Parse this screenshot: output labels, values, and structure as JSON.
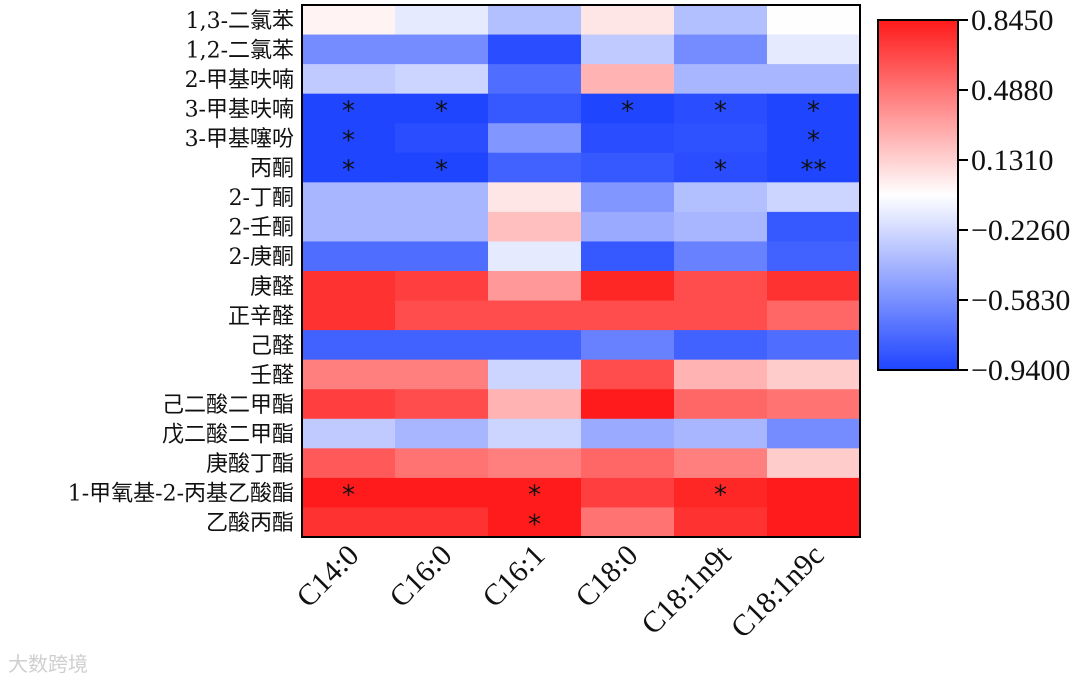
{
  "chart_data": {
    "type": "heatmap",
    "rows": [
      "1,3-二氯苯",
      "1,2-二氯苯",
      "2-甲基呋喃",
      "3-甲基呋喃",
      "3-甲基噻吩",
      "丙酮",
      "2-丁酮",
      "2-壬酮",
      "2-庚酮",
      "庚醛",
      "正辛醛",
      "己醛",
      "壬醛",
      "己二酸二甲酯",
      "戊二酸二甲酯",
      "庚酸丁酯",
      "1-甲氧基-2-丙基乙酸酯",
      "乙酸丙酯"
    ],
    "columns": [
      "C14:0",
      "C16:0",
      "C16:1",
      "C18:0",
      "C18:1n9t",
      "C18:1n9c"
    ],
    "values": [
      [
        0.0,
        -0.15,
        -0.35,
        0.05,
        -0.35,
        -0.05
      ],
      [
        -0.6,
        -0.6,
        -0.9,
        -0.3,
        -0.6,
        -0.15
      ],
      [
        -0.3,
        -0.25,
        -0.75,
        0.25,
        -0.4,
        -0.4
      ],
      [
        -0.94,
        -0.94,
        -0.85,
        -0.94,
        -0.9,
        -0.94
      ],
      [
        -0.94,
        -0.9,
        -0.55,
        -0.9,
        -0.88,
        -0.94
      ],
      [
        -0.94,
        -0.94,
        -0.8,
        -0.85,
        -0.9,
        -0.94
      ],
      [
        -0.4,
        -0.4,
        0.05,
        -0.55,
        -0.35,
        -0.25
      ],
      [
        -0.4,
        -0.4,
        0.2,
        -0.45,
        -0.4,
        -0.85
      ],
      [
        -0.75,
        -0.75,
        -0.15,
        -0.85,
        -0.65,
        -0.8
      ],
      [
        0.75,
        0.7,
        0.35,
        0.8,
        0.65,
        0.75
      ],
      [
        0.75,
        0.65,
        0.65,
        0.65,
        0.65,
        0.55
      ],
      [
        -0.8,
        -0.8,
        -0.8,
        -0.65,
        -0.8,
        -0.75
      ],
      [
        0.45,
        0.45,
        -0.25,
        0.65,
        0.25,
        0.15
      ],
      [
        0.7,
        0.65,
        0.25,
        0.84,
        0.55,
        0.5
      ],
      [
        -0.3,
        -0.4,
        -0.25,
        -0.45,
        -0.4,
        -0.6
      ],
      [
        0.6,
        0.5,
        0.45,
        0.55,
        0.45,
        0.15
      ],
      [
        0.84,
        0.84,
        0.84,
        0.7,
        0.8,
        0.84
      ],
      [
        0.75,
        0.75,
        0.84,
        0.5,
        0.75,
        0.84
      ]
    ],
    "significance": [
      [
        "",
        "",
        "",
        "",
        "",
        ""
      ],
      [
        "",
        "",
        "",
        "",
        "",
        ""
      ],
      [
        "",
        "",
        "",
        "",
        "",
        ""
      ],
      [
        "*",
        "*",
        "",
        "*",
        "*",
        "*"
      ],
      [
        "*",
        "",
        "",
        "",
        "",
        "*"
      ],
      [
        "*",
        "*",
        "",
        "",
        "*",
        "**"
      ],
      [
        "",
        "",
        "",
        "",
        "",
        ""
      ],
      [
        "",
        "",
        "",
        "",
        "",
        ""
      ],
      [
        "",
        "",
        "",
        "",
        "",
        ""
      ],
      [
        "",
        "",
        "",
        "",
        "",
        ""
      ],
      [
        "",
        "",
        "",
        "",
        "",
        ""
      ],
      [
        "",
        "",
        "",
        "",
        "",
        ""
      ],
      [
        "",
        "",
        "",
        "",
        "",
        ""
      ],
      [
        "",
        "",
        "",
        "",
        "",
        ""
      ],
      [
        "",
        "",
        "",
        "",
        "",
        ""
      ],
      [
        "",
        "",
        "",
        "",
        "",
        ""
      ],
      [
        "*",
        "",
        "*",
        "",
        "*",
        ""
      ],
      [
        "",
        "",
        "*",
        "",
        "",
        ""
      ]
    ],
    "scale_min": -0.94,
    "scale_max": 0.845,
    "colorbar_ticks": [
      "0.8450",
      "0.4880",
      "0.1310",
      "−0.2260",
      "−0.5830",
      "−0.9400"
    ],
    "colors": {
      "low": "#1f45ff",
      "mid": "#ffffff",
      "high": "#ff1a1a"
    },
    "legend_position": "right"
  },
  "watermark": "大数跨境"
}
